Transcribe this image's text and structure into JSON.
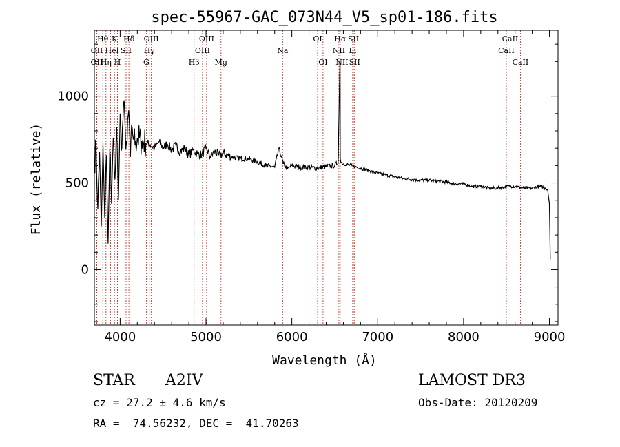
{
  "chart_data": {
    "type": "line",
    "title": "spec-55967-GAC_073N44_V5_sp01-186.fits",
    "xlabel": "Wavelength (Å)",
    "ylabel": "Flux (relative)",
    "xlim": [
      3700,
      9100
    ],
    "ylim": [
      -320,
      1380
    ],
    "xticks": [
      4000,
      5000,
      6000,
      7000,
      8000,
      9000
    ],
    "yticks": [
      0,
      500,
      1000
    ],
    "series": [
      {
        "name": "spectrum",
        "x": [
          3700,
          3720,
          3740,
          3760,
          3780,
          3800,
          3820,
          3840,
          3860,
          3880,
          3900,
          3920,
          3940,
          3960,
          3980,
          4000,
          4020,
          4040,
          4060,
          4080,
          4100,
          4120,
          4140,
          4160,
          4180,
          4200,
          4250,
          4300,
          4350,
          4400,
          4450,
          4500,
          4550,
          4600,
          4650,
          4700,
          4750,
          4800,
          4850,
          4900,
          4950,
          5000,
          5050,
          5100,
          5150,
          5200,
          5300,
          5400,
          5500,
          5600,
          5700,
          5800,
          5850,
          5900,
          5950,
          6000,
          6100,
          6200,
          6300,
          6400,
          6500,
          6540,
          6560,
          6562,
          6564,
          6570,
          6600,
          6700,
          6800,
          6900,
          7000,
          7100,
          7200,
          7300,
          7400,
          7500,
          7600,
          7700,
          7800,
          7900,
          8000,
          8100,
          8200,
          8300,
          8400,
          8500,
          8600,
          8700,
          8800,
          8900,
          8950,
          8980,
          9000,
          9010
        ],
        "y": [
          620,
          700,
          350,
          680,
          250,
          720,
          300,
          660,
          150,
          700,
          380,
          760,
          520,
          820,
          400,
          900,
          700,
          960,
          780,
          720,
          920,
          650,
          820,
          760,
          740,
          760,
          740,
          730,
          720,
          700,
          735,
          705,
          725,
          690,
          715,
          680,
          700,
          660,
          690,
          670,
          660,
          700,
          650,
          680,
          660,
          670,
          650,
          640,
          640,
          620,
          600,
          590,
          700,
          610,
          580,
          600,
          590,
          590,
          585,
          595,
          600,
          620,
          1200,
          1180,
          640,
          620,
          610,
          600,
          585,
          570,
          555,
          545,
          535,
          525,
          520,
          515,
          515,
          510,
          505,
          495,
          495,
          480,
          480,
          470,
          470,
          480,
          480,
          470,
          470,
          480,
          470,
          460,
          380,
          60
        ]
      }
    ],
    "line_markers": [
      {
        "label": "Hθ",
        "x": 3798,
        "row": 1
      },
      {
        "label": "OII",
        "x": 3728,
        "row": 2
      },
      {
        "label": "OII",
        "x": 3727,
        "row": 3
      },
      {
        "label": "He",
        "x": 3889,
        "row": 2
      },
      {
        "label": "Hη",
        "x": 3835,
        "row": 3
      },
      {
        "label": "K",
        "x": 3934,
        "row": 1
      },
      {
        "label": "H",
        "x": 3969,
        "row": 3
      },
      {
        "label": "I",
        "x": 3970,
        "row": 2
      },
      {
        "label": "SII",
        "x": 4069,
        "row": 2
      },
      {
        "label": "Hδ",
        "x": 4102,
        "row": 1
      },
      {
        "label": "OIII",
        "x": 4363,
        "row": 1
      },
      {
        "label": "Hγ",
        "x": 4340,
        "row": 2
      },
      {
        "label": "G",
        "x": 4305,
        "row": 3
      },
      {
        "label": "Hβ",
        "x": 4861,
        "row": 3
      },
      {
        "label": "OIII",
        "x": 5007,
        "row": 1
      },
      {
        "label": "OIII",
        "x": 4959,
        "row": 2
      },
      {
        "label": "Mg",
        "x": 5175,
        "row": 3
      },
      {
        "label": "Na",
        "x": 5893,
        "row": 2
      },
      {
        "label": "OI",
        "x": 6300,
        "row": 1
      },
      {
        "label": "OI",
        "x": 6363,
        "row": 3
      },
      {
        "label": "Hα",
        "x": 6563,
        "row": 1
      },
      {
        "label": "NII",
        "x": 6548,
        "row": 2
      },
      {
        "label": "NII",
        "x": 6584,
        "row": 3
      },
      {
        "label": "SII",
        "x": 6717,
        "row": 1
      },
      {
        "label": "Li",
        "x": 6708,
        "row": 2
      },
      {
        "label": "SII",
        "x": 6731,
        "row": 3
      },
      {
        "label": "CaII",
        "x": 8542,
        "row": 1
      },
      {
        "label": "CaII",
        "x": 8498,
        "row": 2
      },
      {
        "label": "CaII",
        "x": 8662,
        "row": 3
      }
    ]
  },
  "info": {
    "object_class": "STAR",
    "subclass": "A2IV",
    "survey": "LAMOST DR3",
    "cz": "cz = 27.2 ± 4.6 km/s",
    "obs_date": "Obs-Date: 20120209",
    "radec": "RA =  74.56232, DEC =  41.70263"
  }
}
